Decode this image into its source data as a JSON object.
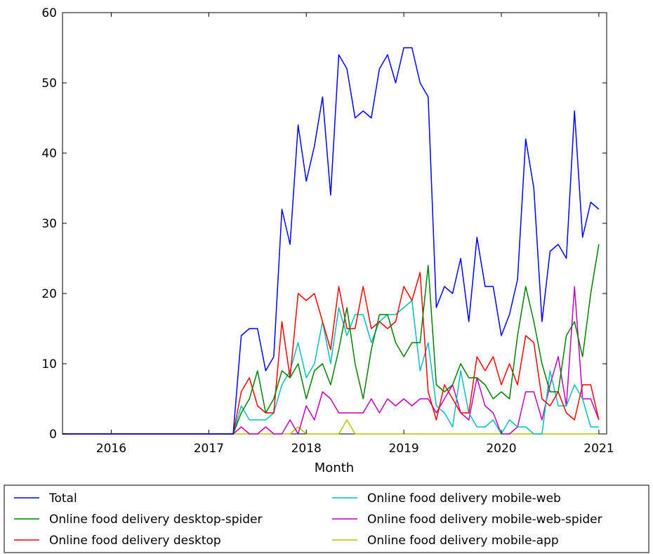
{
  "chart_data": {
    "type": "line",
    "title": "",
    "xlabel": "Month",
    "ylabel": "",
    "ylim": [
      0,
      60
    ],
    "xlim": [
      2015.5,
      2021.08
    ],
    "y_ticks": [
      "0",
      "10",
      "20",
      "30",
      "40",
      "50",
      "60"
    ],
    "x_ticks": [
      "2016",
      "2017",
      "2018",
      "2019",
      "2020",
      "2021"
    ],
    "grid": false,
    "legend_position": "bottom",
    "x_start": 2015.5,
    "x_step": 0.0833333,
    "series": [
      {
        "name": "Total",
        "color": "#0000ff",
        "values": [
          0,
          0,
          0,
          0,
          0,
          0,
          0,
          0,
          0,
          0,
          0,
          0,
          0,
          0,
          0,
          0,
          0,
          0,
          0,
          0,
          0,
          0,
          14,
          15,
          15,
          9,
          11,
          32,
          27,
          44,
          36,
          41,
          48,
          34,
          54,
          52,
          45,
          46,
          45,
          52,
          54,
          50,
          55,
          55,
          50,
          48,
          18,
          21,
          20,
          25,
          16,
          28,
          21,
          21,
          14,
          17,
          22,
          42,
          35,
          16,
          26,
          27,
          25,
          46,
          28,
          33,
          32
        ]
      },
      {
        "name": "Online food delivery desktop-spider",
        "color": "#008000",
        "values": [
          0,
          0,
          0,
          0,
          0,
          0,
          0,
          0,
          0,
          0,
          0,
          0,
          0,
          0,
          0,
          0,
          0,
          0,
          0,
          0,
          0,
          0,
          3,
          5,
          9,
          3,
          5,
          9,
          8,
          10,
          5,
          9,
          10,
          7,
          12,
          18,
          10,
          5,
          12,
          17,
          17,
          13,
          11,
          13,
          13,
          24,
          7,
          6,
          7,
          10,
          8,
          8,
          7,
          5,
          6,
          5,
          14,
          21,
          16,
          10,
          6,
          6,
          14,
          16,
          11,
          20,
          27
        ]
      },
      {
        "name": "Online food delivery desktop",
        "color": "#ff0000",
        "values": [
          0,
          0,
          0,
          0,
          0,
          0,
          0,
          0,
          0,
          0,
          0,
          0,
          0,
          0,
          0,
          0,
          0,
          0,
          0,
          0,
          0,
          0,
          6,
          8,
          4,
          3,
          3,
          16,
          8,
          20,
          19,
          20,
          16,
          12,
          21,
          15,
          15,
          21,
          15,
          16,
          15,
          16,
          21,
          19,
          23,
          6,
          2,
          7,
          5,
          3,
          3,
          11,
          9,
          11,
          7,
          10,
          7,
          14,
          13,
          5,
          4,
          6,
          3,
          2,
          7,
          7,
          2
        ]
      },
      {
        "name": "Online food delivery mobile-web",
        "color": "#00bfbf",
        "values": [
          0,
          0,
          0,
          0,
          0,
          0,
          0,
          0,
          0,
          0,
          0,
          0,
          0,
          0,
          0,
          0,
          0,
          0,
          0,
          0,
          0,
          0,
          4,
          2,
          2,
          2,
          3,
          7,
          9,
          13,
          8,
          10,
          16,
          10,
          18,
          14,
          17,
          17,
          13,
          16,
          17,
          17,
          18,
          19,
          9,
          13,
          4,
          3,
          1,
          9,
          3,
          1,
          1,
          2,
          0,
          2,
          1,
          1,
          0,
          0,
          9,
          4,
          4,
          7,
          5,
          1,
          1
        ]
      },
      {
        "name": "Online food delivery mobile-web-spider",
        "color": "#bf00bf",
        "values": [
          0,
          0,
          0,
          0,
          0,
          0,
          0,
          0,
          0,
          0,
          0,
          0,
          0,
          0,
          0,
          0,
          0,
          0,
          0,
          0,
          0,
          0,
          1,
          0,
          0,
          1,
          0,
          0,
          2,
          0,
          4,
          2,
          6,
          5,
          3,
          3,
          3,
          3,
          5,
          3,
          5,
          4,
          5,
          4,
          5,
          5,
          3,
          5,
          7,
          3,
          2,
          8,
          4,
          3,
          0,
          0,
          1,
          6,
          6,
          2,
          7,
          11,
          4,
          21,
          5,
          5,
          2
        ]
      },
      {
        "name": "Online food delivery mobile-app",
        "color": "#bfbf00",
        "values": [
          0,
          0,
          0,
          0,
          0,
          0,
          0,
          0,
          0,
          0,
          0,
          0,
          0,
          0,
          0,
          0,
          0,
          0,
          0,
          0,
          0,
          0,
          0,
          0,
          0,
          0,
          0,
          0,
          0,
          1,
          0,
          0,
          0,
          0,
          0,
          2,
          0,
          0,
          0,
          0,
          0,
          0,
          0,
          0,
          0,
          0,
          0,
          0,
          0,
          0,
          0,
          0,
          0,
          0,
          0,
          0,
          0,
          0,
          0,
          0,
          0,
          0,
          0,
          0,
          0,
          0,
          0
        ]
      }
    ]
  }
}
